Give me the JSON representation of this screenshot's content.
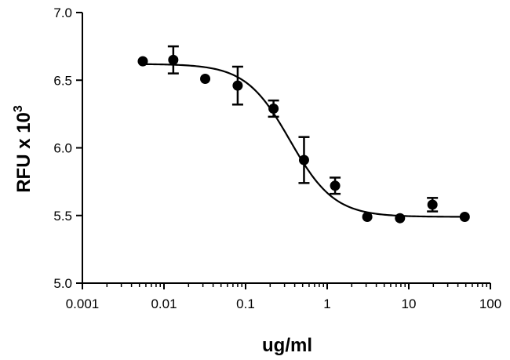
{
  "chart_data": {
    "type": "scatter",
    "title": "",
    "xlabel": "ug/ml",
    "ylabel": {
      "main": "RFU x 10",
      "superscript": "3"
    },
    "x_scale": "log",
    "xlim": [
      0.001,
      100
    ],
    "ylim": [
      5.0,
      7.0
    ],
    "x_ticks": [
      "0.001",
      "0.01",
      "0.1",
      "1",
      "10",
      "100"
    ],
    "y_ticks": [
      "5.0",
      "5.5",
      "6.0",
      "6.5",
      "7.0"
    ],
    "grid": false,
    "legend": "none",
    "series": [
      {
        "points": [
          {
            "x": 0.0055,
            "y": 6.64,
            "err": 0
          },
          {
            "x": 0.013,
            "y": 6.65,
            "err": 0.1
          },
          {
            "x": 0.032,
            "y": 6.51,
            "err": 0
          },
          {
            "x": 0.08,
            "y": 6.46,
            "err": 0.14
          },
          {
            "x": 0.22,
            "y": 6.29,
            "err": 0.06
          },
          {
            "x": 0.52,
            "y": 5.91,
            "err": 0.17
          },
          {
            "x": 1.25,
            "y": 5.72,
            "err": 0.06
          },
          {
            "x": 3.1,
            "y": 5.49,
            "err": 0
          },
          {
            "x": 7.8,
            "y": 5.48,
            "err": 0
          },
          {
            "x": 19.5,
            "y": 5.58,
            "err": 0.05
          },
          {
            "x": 48.5,
            "y": 5.49,
            "err": 0
          }
        ],
        "fit_curve": {
          "model": "sigmoidal dose-response",
          "top": 6.62,
          "bottom": 5.49,
          "ec50": 0.35,
          "hill_slope": -1.6
        }
      }
    ],
    "colors": {
      "marker": "#000000",
      "line": "#000000"
    }
  }
}
